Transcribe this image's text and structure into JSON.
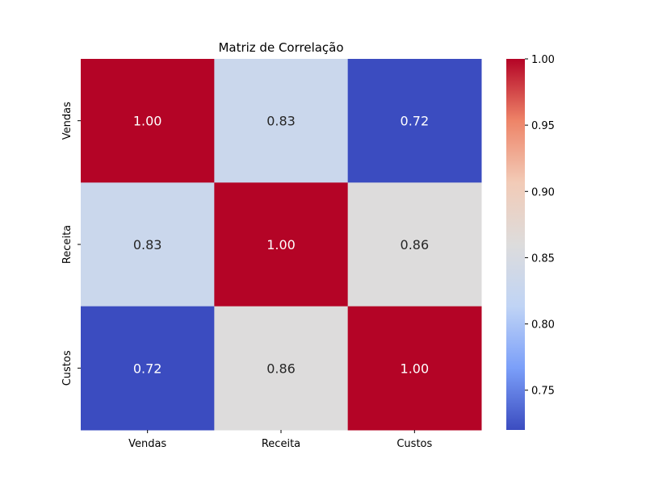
{
  "chart_data": {
    "type": "heatmap",
    "title": "Matriz de Correlação",
    "x_categories": [
      "Vendas",
      "Receita",
      "Custos"
    ],
    "y_categories": [
      "Vendas",
      "Receita",
      "Custos"
    ],
    "values": [
      [
        1.0,
        0.83,
        0.72
      ],
      [
        0.83,
        1.0,
        0.86
      ],
      [
        0.72,
        0.86,
        1.0
      ]
    ],
    "value_labels": [
      [
        "1.00",
        "0.83",
        "0.72"
      ],
      [
        "0.83",
        "1.00",
        "0.86"
      ],
      [
        "0.72",
        "0.86",
        "1.00"
      ]
    ],
    "colorbar": {
      "vmin": 0.72,
      "vmax": 1.0,
      "ticks": [
        0.75,
        0.8,
        0.85,
        0.9,
        0.95,
        1.0
      ],
      "tick_labels": [
        "0.75",
        "0.80",
        "0.85",
        "0.90",
        "0.95",
        "1.00"
      ],
      "colormap": "coolwarm",
      "colormap_stops": [
        "#3b4cc0",
        "#7b9ff9",
        "#c0d4f5",
        "#dddcdc",
        "#f2cbb7",
        "#ee8468",
        "#b40426"
      ]
    },
    "grid": false,
    "legend": "colorbar-right"
  }
}
